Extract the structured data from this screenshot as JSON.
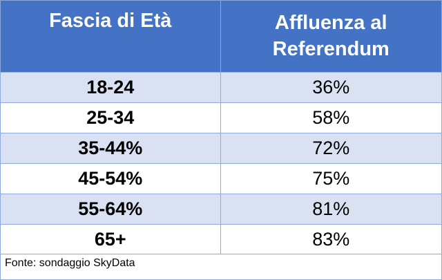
{
  "table": {
    "headers": [
      "Fascia di Età",
      "Affluenza al Referendum"
    ],
    "rows": [
      {
        "age_group": "18-24",
        "turnout": "36%"
      },
      {
        "age_group": "25-34",
        "turnout": "58%"
      },
      {
        "age_group": "35-44%",
        "turnout": "72%"
      },
      {
        "age_group": "45-54%",
        "turnout": "75%"
      },
      {
        "age_group": "55-64%",
        "turnout": "81%"
      },
      {
        "age_group": "65+",
        "turnout": "83%"
      }
    ],
    "source": "Fonte: sondaggio SkyData"
  },
  "colors": {
    "header_bg": "#4472c4",
    "header_text": "#ffffff",
    "band_row": "#d9e1f2",
    "plain_row": "#ffffff",
    "grid_line": "#8ea9db"
  },
  "chart_data": {
    "type": "table",
    "columns": [
      "Fascia di Età",
      "Affluenza al Referendum"
    ],
    "categories": [
      "18-24",
      "25-34",
      "35-44%",
      "45-54%",
      "55-64%",
      "65+"
    ],
    "values": [
      36,
      58,
      72,
      75,
      81,
      83
    ],
    "unit": "%",
    "source": "Fonte: sondaggio SkyData"
  }
}
